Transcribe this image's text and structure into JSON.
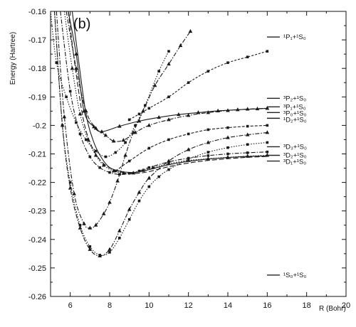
{
  "panel_label": "(b)",
  "chart_data": {
    "type": "line",
    "title": "",
    "xlabel": "R (Bohr)",
    "ylabel": "Energy (Hartree)",
    "xlim": [
      5,
      20
    ],
    "ylim": [
      -0.26,
      -0.16
    ],
    "x_ticks": [
      6,
      8,
      10,
      12,
      14,
      16,
      18,
      20
    ],
    "y_ticks": [
      -0.26,
      -0.25,
      -0.24,
      -0.23,
      -0.22,
      -0.21,
      -0.2,
      -0.19,
      -0.18,
      -0.17,
      -0.16
    ],
    "x_tick_labels": [
      "6",
      "8",
      "10",
      "12",
      "14",
      "16",
      "18",
      "20"
    ],
    "y_tick_labels": [
      "-0.26",
      "-0.25",
      "-0.24",
      "-0.23",
      "-0.22",
      "-0.21",
      "-0.2",
      "-0.19",
      "-0.18",
      "-0.17",
      "-0.16"
    ],
    "grid": false,
    "asymptotes": [
      {
        "label": "¹P₁+¹S₀",
        "y": -0.169
      },
      {
        "label": "³P₂+¹S₀",
        "y": -0.1905
      },
      {
        "label": "³P₁+¹S₀",
        "y": -0.1935
      },
      {
        "label": "³P₀+¹S₀",
        "y": -0.1955
      },
      {
        "label": "¹D₂+¹S₀",
        "y": -0.1975
      },
      {
        "label": "³D₃+¹S₀",
        "y": -0.2075
      },
      {
        "label": "³D₂+¹S₀",
        "y": -0.2105
      },
      {
        "label": "³D₁+¹S₀",
        "y": -0.2125
      },
      {
        "label": "¹S₀+¹S₀",
        "y": -0.2525
      }
    ],
    "series": [
      {
        "style": "solid-triangle",
        "marker": "triangle",
        "x": [
          5.9,
          6.3,
          6.7,
          7.2,
          7.6,
          8.5,
          9.5,
          10.5,
          11.5,
          12.5,
          13.5,
          14.5,
          15.5,
          16.0
        ],
        "y": [
          -0.16,
          -0.175,
          -0.195,
          -0.2005,
          -0.2022,
          -0.2003,
          -0.1985,
          -0.1972,
          -0.1962,
          -0.1955,
          -0.1949,
          -0.1945,
          -0.1942,
          -0.194
        ]
      },
      {
        "style": "dashdot-triangle",
        "marker": "triangle",
        "x": [
          5.8,
          6.3,
          6.8,
          7.3,
          7.8,
          8.2,
          8.7,
          9.3,
          10.0,
          11.0,
          12.0,
          13.0,
          14.0,
          15.0,
          16.0
        ],
        "y": [
          -0.16,
          -0.18,
          -0.195,
          -0.201,
          -0.2035,
          -0.2055,
          -0.2052,
          -0.2025,
          -0.2,
          -0.198,
          -0.1965,
          -0.1955,
          -0.1948,
          -0.1943,
          -0.194
        ]
      },
      {
        "style": "dotted-square",
        "marker": "square",
        "x": [
          5.0,
          5.3,
          5.8,
          6.3,
          6.8,
          7.3,
          7.8,
          8.3,
          8.8,
          9.3,
          9.8,
          10.5,
          11.0
        ],
        "y": [
          -0.16,
          -0.178,
          -0.19,
          -0.199,
          -0.205,
          -0.209,
          -0.211,
          -0.2095,
          -0.206,
          -0.2,
          -0.193,
          -0.181,
          -0.174
        ]
      },
      {
        "style": "short-dash-square",
        "marker": "square",
        "x": [
          9.0,
          9.5,
          10.0,
          11.0,
          12.0,
          13.0,
          14.0,
          15.0,
          16.0
        ],
        "y": [
          -0.198,
          -0.196,
          -0.194,
          -0.19,
          -0.185,
          -0.181,
          -0.178,
          -0.176,
          -0.174
        ]
      },
      {
        "style": "solid",
        "marker": "none",
        "x": [
          6.1,
          6.4,
          6.8,
          7.2,
          7.6,
          8.0,
          8.5,
          9.0,
          9.5,
          10.0,
          11.0,
          12.0,
          13.0,
          14.0,
          15.0,
          16.0
        ],
        "y": [
          -0.16,
          -0.176,
          -0.196,
          -0.206,
          -0.2115,
          -0.2148,
          -0.216,
          -0.2165,
          -0.2163,
          -0.2155,
          -0.2138,
          -0.2126,
          -0.2118,
          -0.2113,
          -0.2109,
          -0.2107
        ]
      },
      {
        "style": "long-dash",
        "marker": "none",
        "x": [
          5.9,
          6.3,
          6.7,
          7.1,
          7.5,
          7.9,
          8.4,
          8.9,
          9.4,
          10.0,
          11.0,
          12.0,
          13.0,
          14.0,
          15.0,
          16.0
        ],
        "y": [
          -0.16,
          -0.182,
          -0.199,
          -0.2075,
          -0.212,
          -0.2145,
          -0.216,
          -0.2168,
          -0.2168,
          -0.2162,
          -0.2145,
          -0.2132,
          -0.2123,
          -0.2117,
          -0.2112,
          -0.2109
        ]
      },
      {
        "style": "dotted-triangle",
        "marker": "triangle",
        "x": [
          5.7,
          6.1,
          6.5,
          6.9,
          7.3,
          7.7,
          8.2,
          8.7,
          9.2,
          9.7,
          10.2,
          11.0,
          12.0,
          13.0,
          14.0,
          15.0,
          16.0
        ],
        "y": [
          -0.16,
          -0.18,
          -0.196,
          -0.205,
          -0.2105,
          -0.214,
          -0.216,
          -0.2168,
          -0.2167,
          -0.2158,
          -0.2148,
          -0.2134,
          -0.2123,
          -0.2117,
          -0.2112,
          -0.2108,
          -0.2105
        ]
      },
      {
        "style": "dashdot-square",
        "marker": "square",
        "x": [
          5.5,
          6.0,
          6.5,
          7.0,
          7.5,
          8.0,
          8.5,
          9.0,
          9.5,
          10.0,
          11.0,
          12.0,
          13.0,
          14.0,
          15.0,
          16.0
        ],
        "y": [
          -0.16,
          -0.188,
          -0.203,
          -0.211,
          -0.2148,
          -0.2165,
          -0.2172,
          -0.2168,
          -0.216,
          -0.2148,
          -0.2128,
          -0.2115,
          -0.2106,
          -0.21,
          -0.2096,
          -0.2093
        ]
      },
      {
        "style": "dotted-square",
        "marker": "square",
        "x": [
          5.2,
          5.6,
          6.0,
          6.5,
          7.0,
          7.5,
          8.0,
          8.5,
          9.0,
          9.5,
          10.0,
          10.5,
          11.0,
          12.0,
          13.0,
          14.0,
          15.0,
          16.0
        ],
        "y": [
          -0.16,
          -0.2,
          -0.22,
          -0.235,
          -0.2425,
          -0.2455,
          -0.2445,
          -0.2395,
          -0.233,
          -0.2265,
          -0.2215,
          -0.218,
          -0.2155,
          -0.2118,
          -0.2094,
          -0.2078,
          -0.2067,
          -0.206
        ]
      },
      {
        "style": "dashdot-triangle",
        "marker": "triangle",
        "x": [
          5.2,
          5.6,
          6.0,
          6.5,
          7.0,
          7.5,
          8.0,
          8.5,
          9.0,
          9.5,
          10.0,
          11.0,
          12.0,
          13.0,
          14.0,
          15.0,
          16.0
        ],
        "y": [
          -0.16,
          -0.2,
          -0.222,
          -0.236,
          -0.2435,
          -0.2458,
          -0.2435,
          -0.237,
          -0.2295,
          -0.2235,
          -0.2185,
          -0.2125,
          -0.2085,
          -0.206,
          -0.2043,
          -0.2033,
          -0.2025
        ]
      },
      {
        "style": "dashdot-triangle",
        "marker": "triangle",
        "x": [
          5.3,
          5.7,
          6.2,
          6.7,
          7.0,
          7.3,
          7.7,
          8.0,
          8.4,
          8.8,
          9.2,
          9.7,
          10.3,
          11.0,
          11.6,
          12.1
        ],
        "y": [
          -0.16,
          -0.197,
          -0.224,
          -0.2345,
          -0.236,
          -0.235,
          -0.231,
          -0.227,
          -0.2195,
          -0.2105,
          -0.2025,
          -0.195,
          -0.186,
          -0.1785,
          -0.172,
          -0.167
        ]
      },
      {
        "style": "dashed-square",
        "marker": "square",
        "x": [
          8.3,
          9.0,
          10.0,
          11.0,
          12.0,
          13.0,
          14.0,
          15.0,
          16.0
        ],
        "y": [
          -0.216,
          -0.2125,
          -0.208,
          -0.205,
          -0.203,
          -0.2015,
          -0.2008,
          -0.2003,
          -0.2
        ]
      }
    ]
  }
}
